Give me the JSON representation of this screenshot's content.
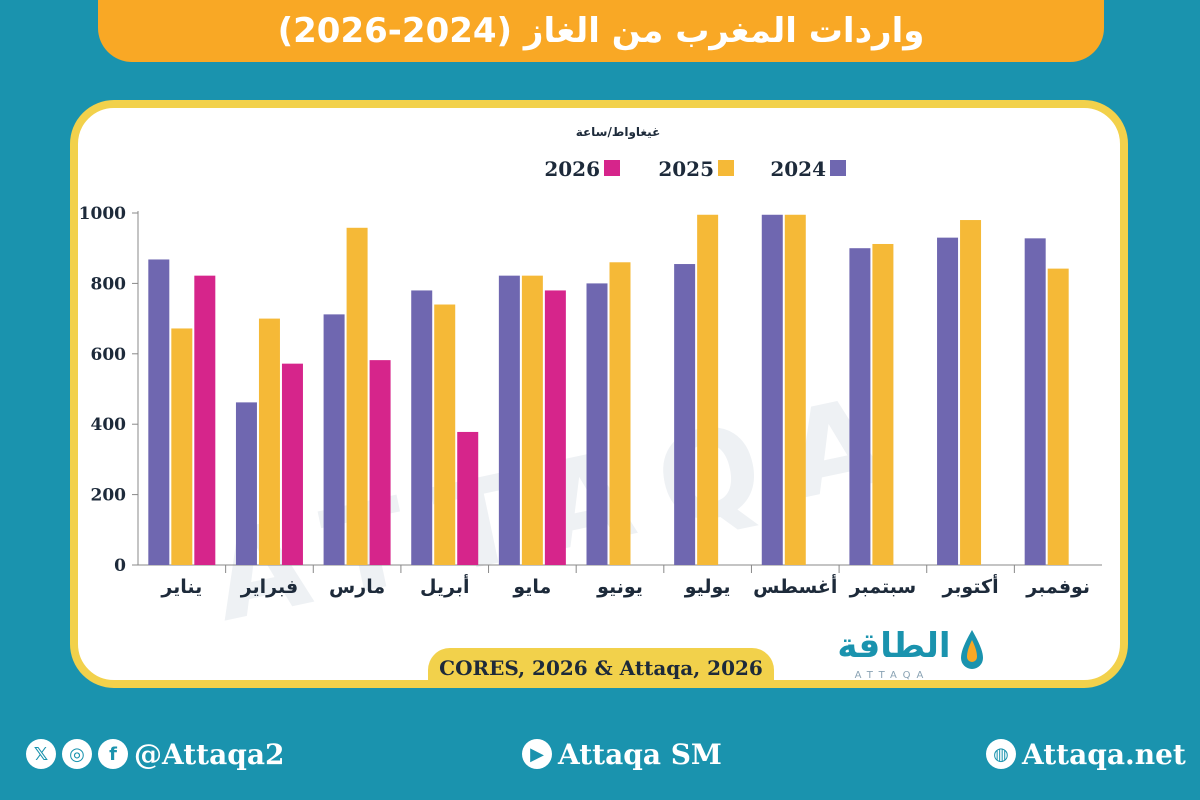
{
  "title": "واردات المغرب من الغاز (2024-2026)",
  "chart_data": {
    "type": "bar",
    "unit_label": "غيغاواط/ساعة",
    "categories": [
      "يناير",
      "فبراير",
      "مارس",
      "أبريل",
      "مايو",
      "يونيو",
      "يوليو",
      "أغسطس",
      "سبتمبر",
      "أكتوبر",
      "نوفمبر"
    ],
    "series": [
      {
        "name": "2024",
        "color": "#6f67b0",
        "values": [
          868,
          462,
          712,
          780,
          822,
          800,
          855,
          995,
          900,
          930,
          928
        ]
      },
      {
        "name": "2025",
        "color": "#f5b937",
        "values": [
          672,
          700,
          958,
          740,
          822,
          860,
          995,
          995,
          912,
          980,
          842
        ]
      },
      {
        "name": "2026",
        "color": "#d6258b",
        "values": [
          822,
          572,
          582,
          378,
          780,
          null,
          null,
          null,
          null,
          null,
          null
        ]
      }
    ],
    "legend_order": [
      "2026",
      "2025",
      "2024"
    ],
    "yticks": [
      0,
      200,
      400,
      600,
      800,
      1000
    ],
    "ylim": [
      0,
      1000
    ],
    "grid": false,
    "legend": "top"
  },
  "source": "CORES, 2026 & Attaqa, 2026",
  "logo": {
    "text": "الطاقة",
    "sub": "ATTAQA"
  },
  "footer": {
    "social_handle": "@Attaqa2",
    "youtube": "Attaqa SM",
    "website": "Attaqa.net",
    "icons": [
      "x-icon",
      "instagram-icon",
      "facebook-icon",
      "youtube-icon",
      "globe-icon"
    ]
  },
  "colors": {
    "background": "#1a93ae",
    "title_bar": "#f9a825",
    "card_border": "#f2d14b"
  }
}
